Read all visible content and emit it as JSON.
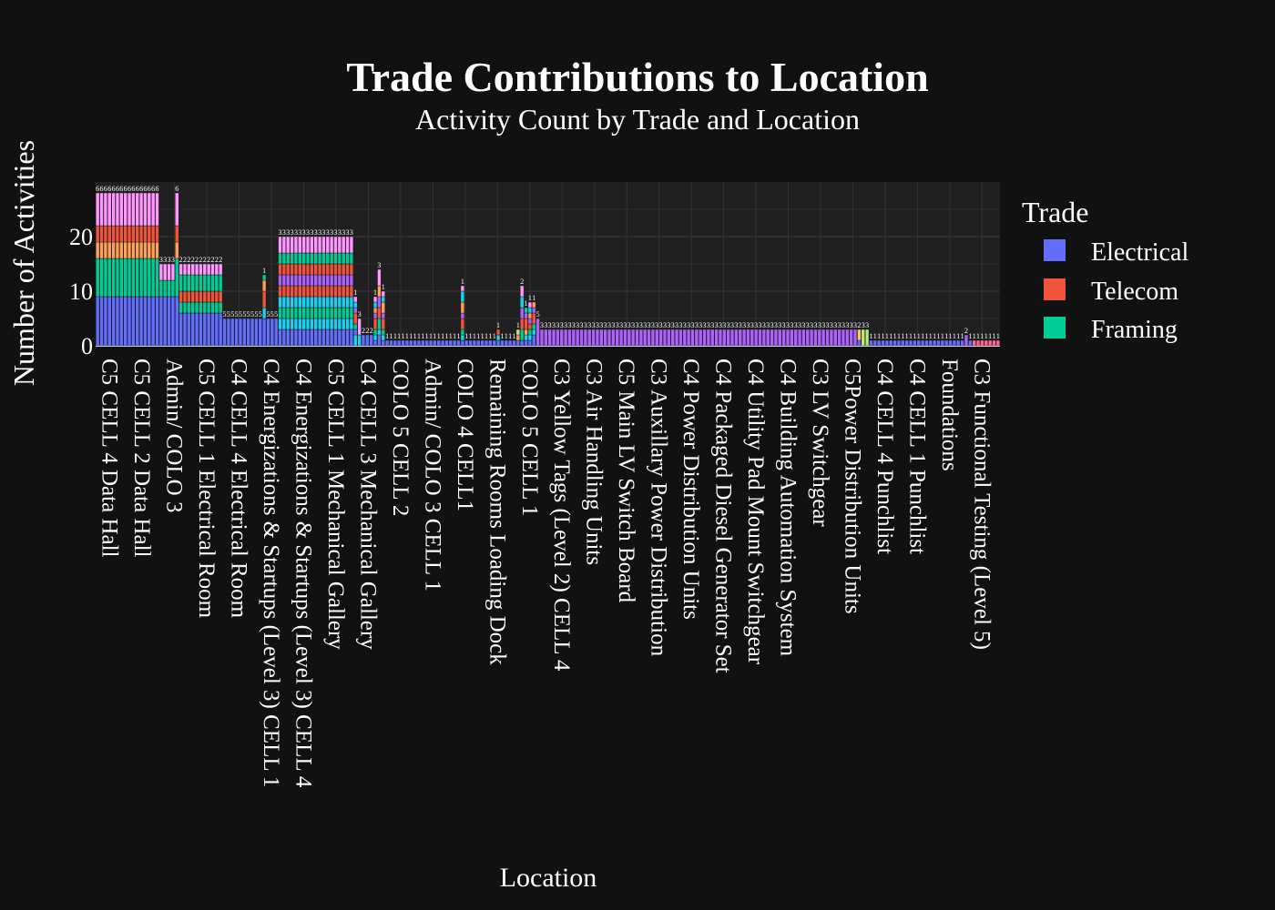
{
  "chart_data": {
    "type": "bar",
    "barmode": "stack",
    "title": "Trade Contributions to Location",
    "subtitle": "Activity Count by Trade and Location",
    "xlabel": "Location",
    "ylabel": "Number of Activities",
    "ylim": [
      0,
      29.5
    ],
    "yticks": [
      0,
      10,
      20
    ],
    "grid": true,
    "legend": {
      "title": "Trade",
      "position": "right",
      "entries": [
        {
          "name": "Electrical",
          "color": "#636efa"
        },
        {
          "name": "Telecom",
          "color": "#ef553b"
        },
        {
          "name": "Framing",
          "color": "#00cc96"
        }
      ]
    },
    "series_colors": [
      "#636efa",
      "#ef553b",
      "#00cc96",
      "#ab63fa",
      "#ffa15a",
      "#19d3f3",
      "#ff6692",
      "#b6e880",
      "#ff97ff",
      "#fecb52"
    ],
    "tick_labels": [
      "C5 CELL 4 Data Hall",
      "C5 CELL 2 Data Hall",
      "Admin/ COLO 3",
      "C5 CELL 1 Electrical Room",
      "C4 CELL 4 Electrical Room",
      "C4 Energizations & Startups (Level 3) CELL 1",
      "C4 Energizations & Startups (Level 3) CELL 4",
      "C5 CELL 1 Mechanical Gallery",
      "C4 CELL 3 Mechanical Gallery",
      "COLO 5 CELL 2",
      "Admin/ COLO 3 CELL 1",
      "COLO 4 CELL1",
      "Remaining Rooms Loading Dock",
      "COLO 5 CELL 1",
      "C3 Yellow Tags (Level 2) CELL 4",
      "C3 Air Handling Units",
      "C5 Main LV Switch Board",
      "C3 Auxillary Power Distribution",
      "C4 Power Distribution Units",
      "C4 Packaged Diesel Generator Set",
      "C4 Utility Pad Mount Switchgear",
      "C4 Building Automation System",
      "C3 LV Switchgear",
      "C5Power Distribution Units",
      "C4 CELL 4 Punchlist",
      "C4 CELL 1 Punchlist",
      "Foundations",
      "C3 Functional Testing (Level 5)"
    ],
    "groups": [
      {
        "count": 8,
        "stack": [
          [
            0,
            9
          ],
          [
            2,
            7
          ],
          [
            4,
            3
          ],
          [
            1,
            3
          ],
          [
            8,
            6
          ]
        ]
      },
      {
        "count": 8,
        "stack": [
          [
            0,
            9
          ],
          [
            2,
            7
          ],
          [
            4,
            3
          ],
          [
            1,
            3
          ],
          [
            8,
            6
          ]
        ]
      },
      {
        "count": 4,
        "stack": [
          [
            0,
            9
          ],
          [
            2,
            3
          ],
          [
            8,
            3
          ]
        ]
      },
      {
        "count": 1,
        "stack": [
          [
            0,
            9
          ],
          [
            2,
            7
          ],
          [
            4,
            3
          ],
          [
            1,
            3
          ],
          [
            8,
            6
          ]
        ]
      },
      {
        "count": 11,
        "stack": [
          [
            0,
            6
          ],
          [
            2,
            2
          ],
          [
            1,
            2
          ],
          [
            2,
            3
          ],
          [
            8,
            2
          ]
        ]
      },
      {
        "count": 10,
        "stack": [
          [
            0,
            5
          ]
        ]
      },
      {
        "count": 1,
        "stack": [
          [
            0,
            5
          ],
          [
            5,
            2
          ],
          [
            1,
            3
          ],
          [
            4,
            2
          ],
          [
            2,
            1
          ]
        ]
      },
      {
        "count": 3,
        "stack": [
          [
            0,
            5
          ]
        ]
      },
      {
        "count": 19,
        "stack": [
          [
            0,
            3
          ],
          [
            5,
            2
          ],
          [
            2,
            2
          ],
          [
            5,
            2
          ],
          [
            1,
            2
          ],
          [
            3,
            2
          ],
          [
            1,
            2
          ],
          [
            2,
            2
          ],
          [
            8,
            3
          ]
        ]
      },
      {
        "count": 1,
        "stack": [
          [
            5,
            2
          ],
          [
            0,
            1
          ],
          [
            2,
            1
          ],
          [
            1,
            2
          ],
          [
            3,
            1
          ],
          [
            5,
            1
          ],
          [
            8,
            1
          ]
        ]
      },
      {
        "count": 1,
        "stack": [
          [
            5,
            2
          ],
          [
            8,
            3
          ]
        ]
      },
      {
        "count": 3,
        "stack": [
          [
            0,
            2
          ]
        ]
      },
      {
        "count": 1,
        "stack": [
          [
            0,
            1
          ],
          [
            5,
            1
          ],
          [
            2,
            1
          ],
          [
            1,
            2
          ],
          [
            3,
            1
          ],
          [
            4,
            1
          ],
          [
            5,
            1
          ],
          [
            8,
            1
          ]
        ]
      },
      {
        "count": 1,
        "stack": [
          [
            0,
            2
          ],
          [
            5,
            1
          ],
          [
            2,
            2
          ],
          [
            1,
            2
          ],
          [
            3,
            2
          ],
          [
            4,
            2
          ],
          [
            8,
            3
          ]
        ]
      },
      {
        "count": 1,
        "stack": [
          [
            0,
            1
          ],
          [
            5,
            1
          ],
          [
            2,
            1
          ],
          [
            1,
            2
          ],
          [
            3,
            1
          ],
          [
            4,
            2
          ],
          [
            5,
            1
          ],
          [
            8,
            1
          ]
        ]
      },
      {
        "count": 19,
        "stack": [
          [
            0,
            1
          ]
        ]
      },
      {
        "count": 1,
        "stack": [
          [
            0,
            1
          ],
          [
            5,
            1
          ],
          [
            2,
            1
          ],
          [
            1,
            2
          ],
          [
            3,
            1
          ],
          [
            4,
            2
          ],
          [
            5,
            2
          ],
          [
            8,
            1
          ]
        ]
      },
      {
        "count": 8,
        "stack": [
          [
            0,
            1
          ]
        ]
      },
      {
        "count": 1,
        "stack": [
          [
            0,
            1
          ],
          [
            5,
            1
          ],
          [
            1,
            1
          ]
        ]
      },
      {
        "count": 4,
        "stack": [
          [
            0,
            1
          ]
        ]
      },
      {
        "count": 1,
        "stack": [
          [
            0,
            1
          ],
          [
            4,
            1
          ],
          [
            7,
            1
          ]
        ]
      },
      {
        "count": 1,
        "stack": [
          [
            0,
            1
          ],
          [
            2,
            2
          ],
          [
            1,
            2
          ],
          [
            3,
            2
          ],
          [
            5,
            2
          ],
          [
            8,
            2
          ]
        ]
      },
      {
        "count": 1,
        "stack": [
          [
            0,
            1
          ],
          [
            5,
            1
          ],
          [
            4,
            1
          ],
          [
            1,
            2
          ],
          [
            3,
            1
          ],
          [
            2,
            1
          ]
        ]
      },
      {
        "count": 1,
        "stack": [
          [
            0,
            1
          ],
          [
            5,
            1
          ],
          [
            2,
            1
          ],
          [
            1,
            1
          ],
          [
            3,
            1
          ],
          [
            4,
            1
          ],
          [
            5,
            1
          ],
          [
            8,
            1
          ]
        ]
      },
      {
        "count": 1,
        "stack": [
          [
            0,
            2
          ],
          [
            5,
            1
          ],
          [
            2,
            1
          ],
          [
            1,
            2
          ],
          [
            3,
            1
          ],
          [
            4,
            1
          ]
        ]
      },
      {
        "count": 1,
        "stack": [
          [
            3,
            5
          ]
        ]
      },
      {
        "count": 80,
        "stack": [
          [
            3,
            3
          ]
        ]
      },
      {
        "count": 1,
        "stack": [
          [
            0,
            1
          ],
          [
            9,
            2
          ]
        ]
      },
      {
        "count": 2,
        "stack": [
          [
            7,
            3
          ]
        ]
      },
      {
        "count": 1,
        "stack": [
          [
            0,
            1
          ]
        ]
      },
      {
        "count": 23,
        "stack": [
          [
            0,
            1
          ]
        ]
      },
      {
        "count": 1,
        "stack": [
          [
            3,
            2
          ]
        ]
      },
      {
        "count": 1,
        "stack": [
          [
            0,
            1
          ]
        ]
      },
      {
        "count": 7,
        "stack": [
          [
            6,
            1
          ]
        ]
      }
    ]
  }
}
